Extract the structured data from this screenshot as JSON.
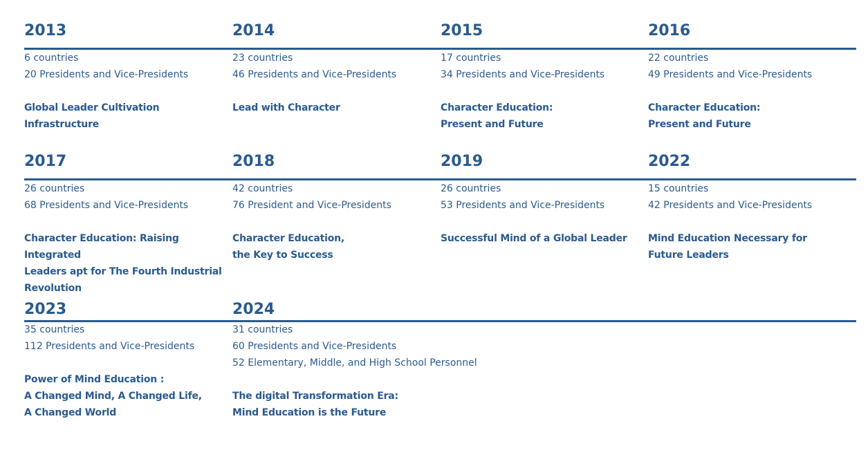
{
  "timeline": {
    "entries": [
      {
        "year": "2013",
        "countries": "6 countries",
        "presidents": "20 Presidents and Vice-Presidents",
        "theme": "Global Leader Cultivation Infrastructure"
      },
      {
        "year": "2014",
        "countries": "23 countries",
        "presidents": "46 Presidents and Vice-Presidents",
        "theme": "Lead with Character"
      },
      {
        "year": "2015",
        "countries": "17 countries",
        "presidents": "34 Presidents and Vice-Presidents",
        "theme": "Character Education:\nPresent and Future"
      },
      {
        "year": "2016",
        "countries": "22 countries",
        "presidents": "49 Presidents and Vice-Presidents",
        "theme": "Character Education:\nPresent and Future"
      },
      {
        "year": "2017",
        "countries": "26 countries",
        "presidents": "68 Presidents and Vice-Presidents",
        "theme": "Character Education: Raising Integrated\nLeaders apt for The Fourth Industrial\nRevolution"
      },
      {
        "year": "2018",
        "countries": "42 countries",
        "presidents": "76 President and Vice-Presidents",
        "theme": "Character Education,\nthe Key to Success"
      },
      {
        "year": "2019",
        "countries": "26 countries",
        "presidents": "53 Presidents and Vice-Presidents",
        "theme": "Successful Mind of a Global Leader"
      },
      {
        "year": "2022",
        "countries": "15 countries",
        "presidents": "42 Presidents and Vice-Presidents",
        "theme": "Mind Education Necessary for\nFuture Leaders"
      },
      {
        "year": "2023",
        "countries": "35 countries",
        "presidents": "112 Presidents and Vice-Presidents",
        "theme": "Power of Mind Education :\nA Changed Mind, A Changed Life,\n A Changed World"
      },
      {
        "year": "2024",
        "countries": "31 countries",
        "presidents": "60 Presidents and Vice-Presidents",
        "personnel": "52 Elementary, Middle, and High School Personnel",
        "theme": "The digital Transformation Era:\nMind Education is the Future"
      }
    ]
  },
  "colors": {
    "accent": "#2a5a8f",
    "background": "#ffffff"
  }
}
